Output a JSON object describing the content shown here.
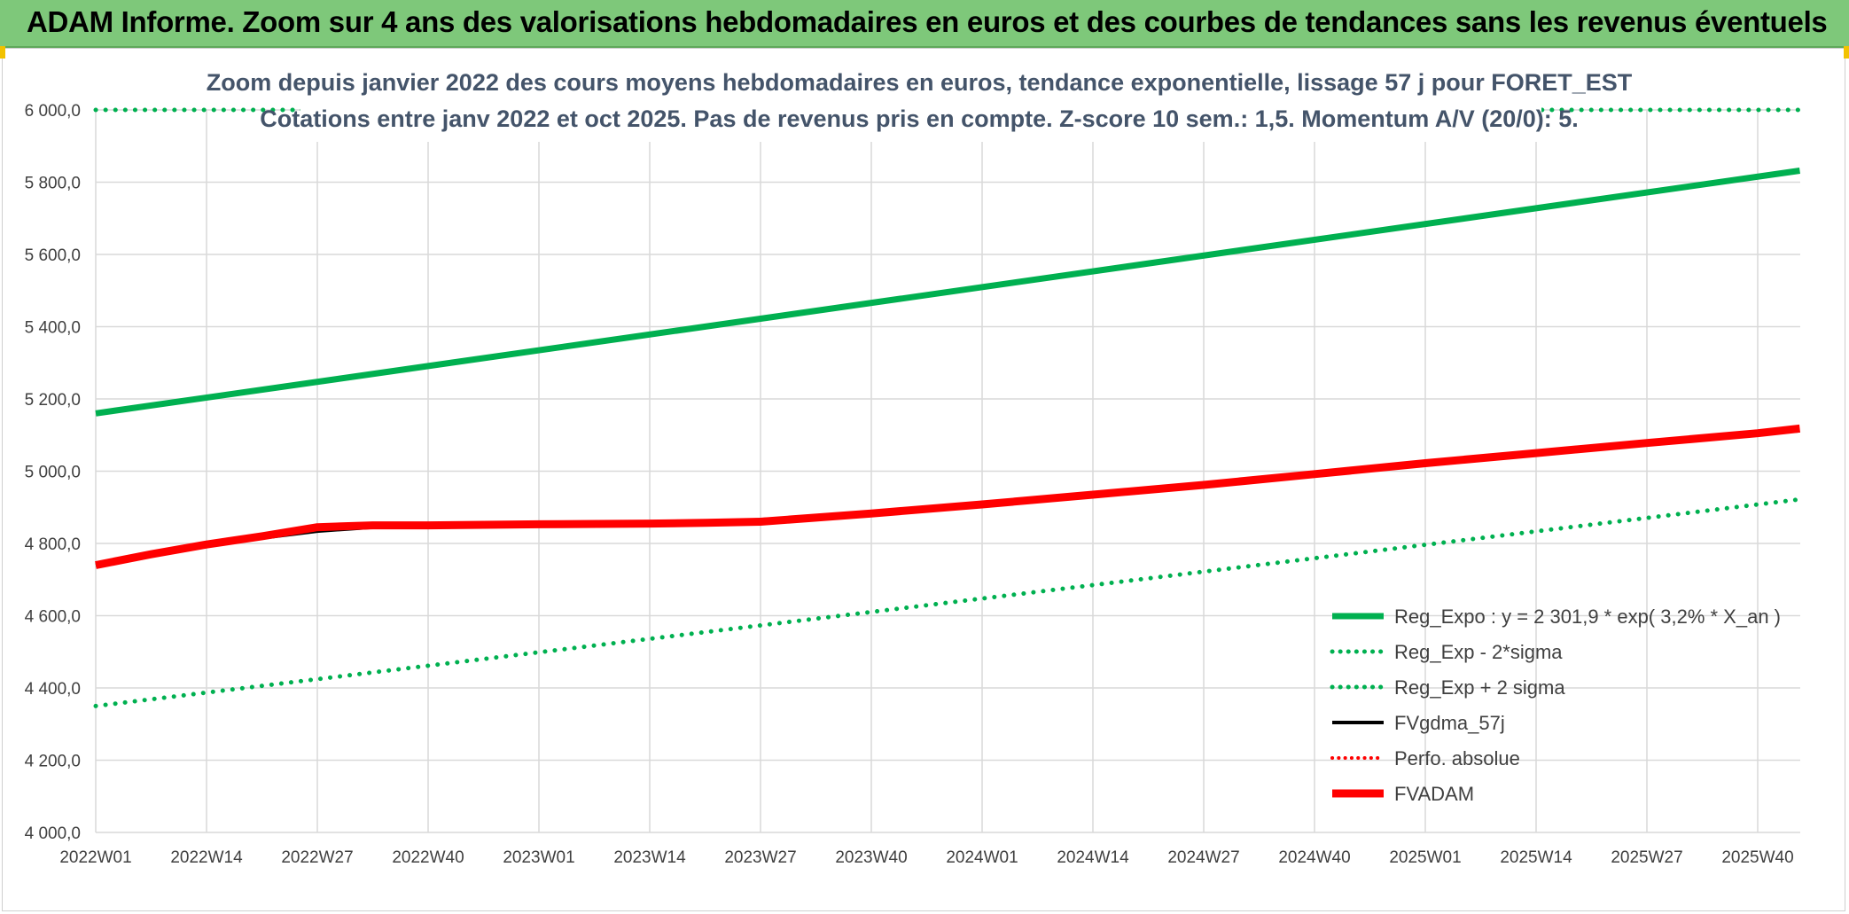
{
  "banner": {
    "title": "ADAM Informe. Zoom sur 4 ans des valorisations hebdomadaires en euros et des courbes de tendances sans les revenus éventuels"
  },
  "chart_data": {
    "type": "line",
    "title_line1": "Zoom depuis janvier 2022 des cours moyens hebdomadaires en euros, tendance exponentielle, lissage 57 j pour FORET_EST",
    "title_line2": "Cotations entre janv 2022 et oct 2025. Pas de revenus pris en compte. Z-score 10 sem.: 1,5. Momentum A/V (20/0): 5.",
    "xlabel": "",
    "ylabel": "",
    "ylim": [
      4000,
      6000
    ],
    "y_ticks": [
      {
        "value": 4000,
        "label": "4 000,0"
      },
      {
        "value": 4200,
        "label": "4 200,0"
      },
      {
        "value": 4400,
        "label": "4 400,0"
      },
      {
        "value": 4600,
        "label": "4 600,0"
      },
      {
        "value": 4800,
        "label": "4 800,0"
      },
      {
        "value": 5000,
        "label": "5 000,0"
      },
      {
        "value": 5200,
        "label": "5 200,0"
      },
      {
        "value": 5400,
        "label": "5 400,0"
      },
      {
        "value": 5600,
        "label": "5 600,0"
      },
      {
        "value": 5800,
        "label": "5 800,0"
      },
      {
        "value": 6000,
        "label": "6 000,0"
      }
    ],
    "x_categories": [
      "2022W01",
      "2022W14",
      "2022W27",
      "2022W40",
      "2023W01",
      "2023W14",
      "2023W27",
      "2023W40",
      "2024W01",
      "2024W14",
      "2024W27",
      "2024W40",
      "2025W01",
      "2025W14",
      "2025W27",
      "2025W40"
    ],
    "x_last_index": 15.38,
    "grid": true,
    "legend_position": "bottom-right",
    "series": [
      {
        "name": "Reg_Expo : y = 2 301,9 * exp( 3,2% *  X_an )",
        "color": "#00b050",
        "style": "solid",
        "width": 7,
        "x": [
          0,
          15.38
        ],
        "values": [
          5160,
          5832
        ]
      },
      {
        "name": "Reg_Exp - 2*sigma",
        "color": "#00b050",
        "style": "dotted",
        "width": 5,
        "x": [
          0,
          15.38
        ],
        "values": [
          4350,
          4922
        ]
      },
      {
        "name": "Reg_Exp + 2 sigma",
        "color": "#00b050",
        "style": "dotted",
        "width": 5,
        "x": [
          0,
          15.38
        ],
        "values": [
          6000,
          6000
        ]
      },
      {
        "name": "FVgdma_57j",
        "color": "#000000",
        "style": "solid",
        "width": 4,
        "x": [
          0,
          0.5,
          1,
          1.5,
          2,
          2.5,
          3,
          4,
          5,
          5.5,
          6,
          7,
          8,
          9,
          10,
          11,
          12,
          13,
          14,
          15,
          15.38
        ],
        "values": [
          4740,
          4768,
          4795,
          4815,
          4834,
          4845,
          4850,
          4853,
          4855,
          4858,
          4866,
          4883,
          4908,
          4935,
          4962,
          4992,
          5022,
          5050,
          5078,
          5104,
          5112
        ]
      },
      {
        "name": "Perfo. absolue",
        "color": "#ff0000",
        "style": "dotted",
        "width": 4,
        "x": [],
        "values": []
      },
      {
        "name": "FVADAM",
        "color": "#ff0000",
        "style": "solid",
        "width": 9,
        "x": [
          0,
          0.5,
          1,
          1.5,
          2,
          2.5,
          3,
          4,
          5,
          5.5,
          6,
          7,
          8,
          9,
          10,
          11,
          12,
          13,
          14,
          15,
          15.38
        ],
        "values": [
          4740,
          4770,
          4797,
          4820,
          4845,
          4850,
          4850,
          4853,
          4855,
          4857,
          4860,
          4883,
          4908,
          4935,
          4962,
          4992,
          5022,
          5050,
          5078,
          5105,
          5118
        ]
      }
    ]
  }
}
